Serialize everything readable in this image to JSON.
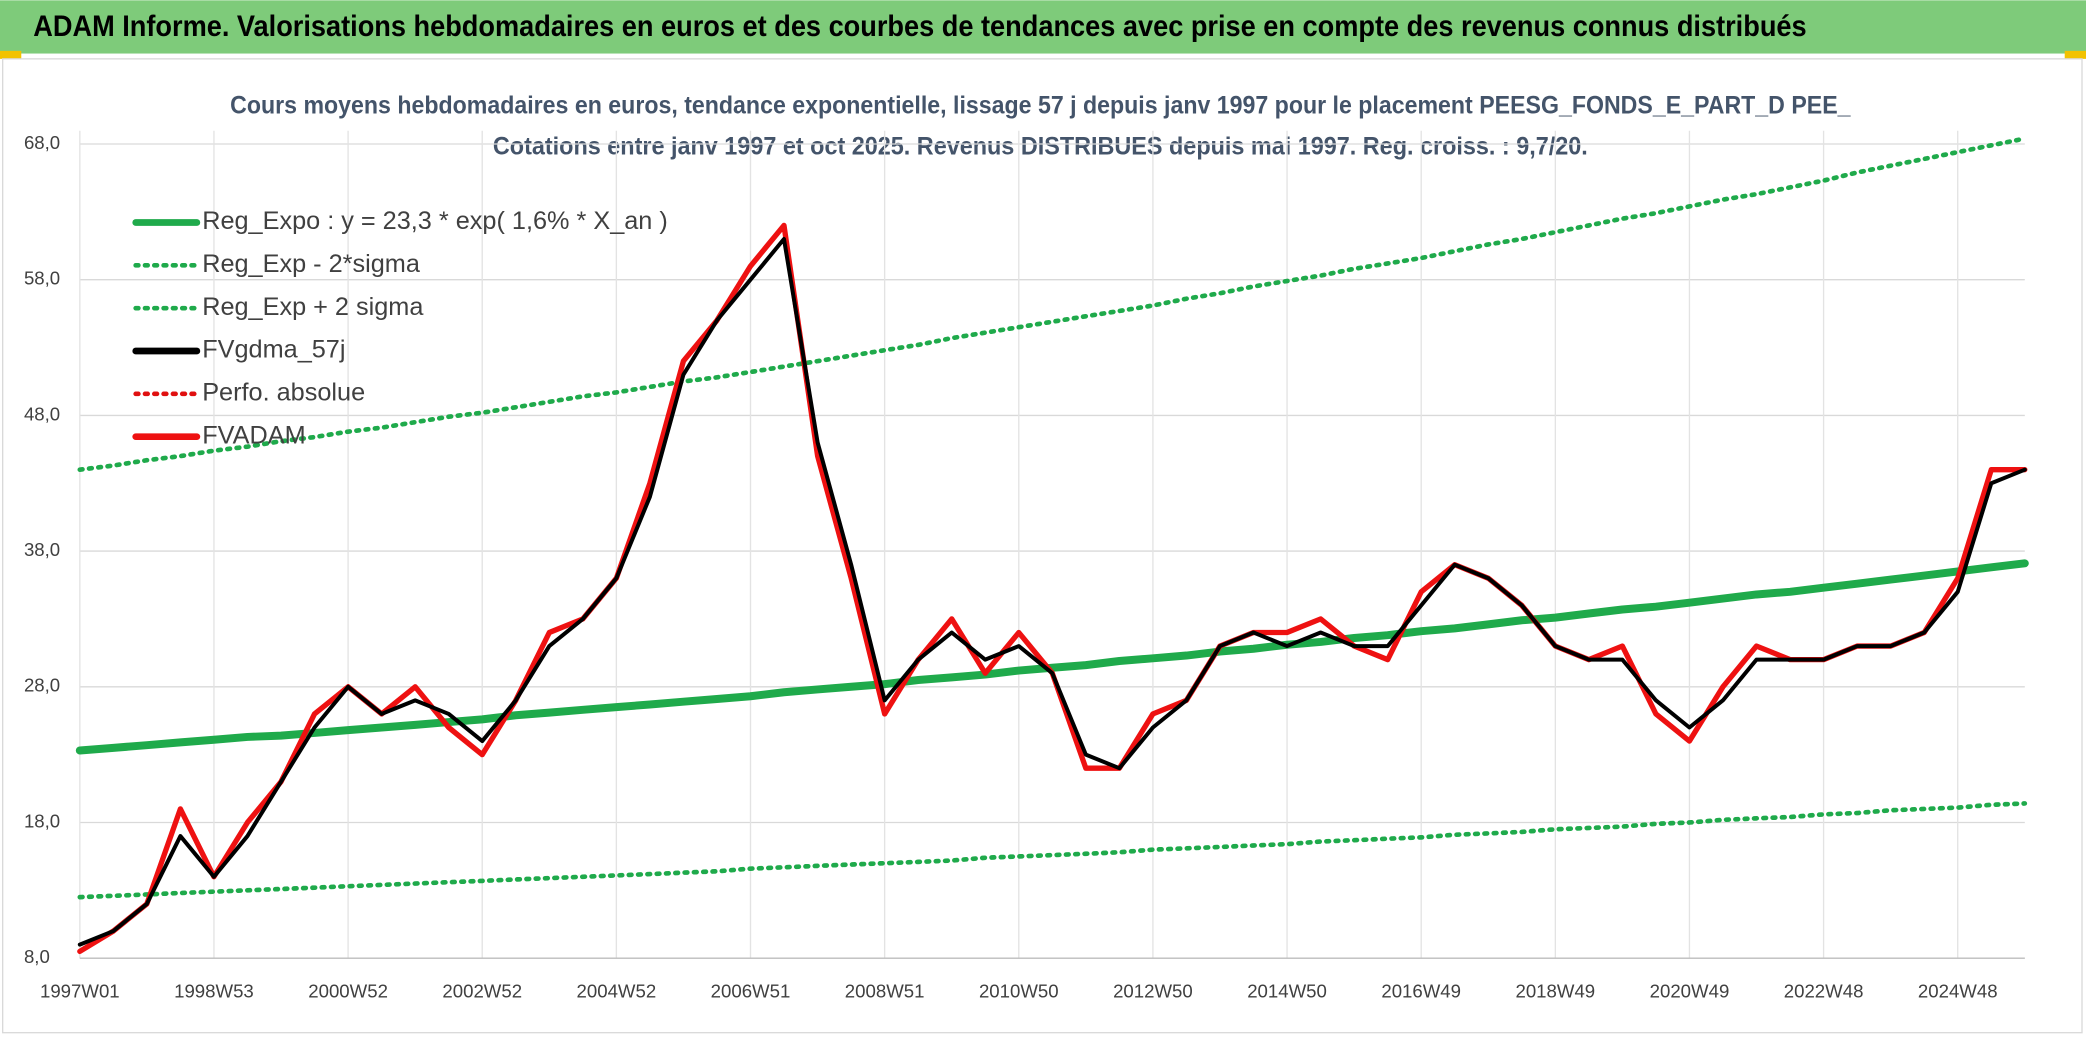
{
  "chart_data": {
    "type": "line",
    "banner": "ADAM Informe. Valorisations hebdomadaires en euros et des courbes de tendances avec prise en compte des revenus connus distribués",
    "title": "Cours moyens hebdomadaires en euros, tendance exponentielle, lissage 57 j depuis janv 1997 pour le placement PEESG_FONDS_E_PART_D PEE_",
    "subtitle": "Cotations entre janv 1997 et oct 2025. Revenus DISTRIBUES depuis mai 1997. Reg. croiss. : 9,7/20.",
    "categories": [
      "1997W01",
      null,
      null,
      null,
      "1998W53",
      null,
      null,
      null,
      "2000W52",
      null,
      null,
      null,
      "2002W52",
      null,
      null,
      null,
      "2004W52",
      null,
      null,
      null,
      "2006W51",
      null,
      null,
      null,
      "2008W51",
      null,
      null,
      null,
      "2010W50",
      null,
      null,
      null,
      "2012W50",
      null,
      null,
      null,
      "2014W50",
      null,
      null,
      null,
      "2016W49",
      null,
      null,
      null,
      "2018W49",
      null,
      null,
      null,
      "2020W49",
      null,
      null,
      null,
      "2022W48",
      null,
      null,
      null,
      "2024W48",
      null,
      null
    ],
    "ylim": [
      8,
      68
    ],
    "yticks": [
      {
        "value": 8,
        "label": "8,0"
      },
      {
        "value": 18,
        "label": "18,0"
      },
      {
        "value": 28,
        "label": "28,0"
      },
      {
        "value": 38,
        "label": "38,0"
      },
      {
        "value": 48,
        "label": "48,0"
      },
      {
        "value": 58,
        "label": "58,0"
      },
      {
        "value": 68,
        "label": "68,0"
      }
    ],
    "grid": true,
    "legend": "upper left",
    "series": [
      {
        "name": "Reg_Expo : y = 23,3 * exp( 1,6% *  X_an )",
        "color": "#1faa4b",
        "style": "solid",
        "values": [
          23.3,
          23.5,
          23.7,
          23.9,
          24.1,
          24.3,
          24.4,
          24.6,
          24.8,
          25.0,
          25.2,
          25.4,
          25.6,
          25.9,
          26.1,
          26.3,
          26.5,
          26.7,
          26.9,
          27.1,
          27.3,
          27.6,
          27.8,
          28.0,
          28.2,
          28.5,
          28.7,
          28.9,
          29.2,
          29.4,
          29.6,
          29.9,
          30.1,
          30.3,
          30.6,
          30.8,
          31.1,
          31.3,
          31.6,
          31.8,
          32.1,
          32.3,
          32.6,
          32.9,
          33.1,
          33.4,
          33.7,
          33.9,
          34.2,
          34.5,
          34.8,
          35.0,
          35.3,
          35.6,
          35.9,
          36.2,
          36.5,
          36.8,
          37.1
        ]
      },
      {
        "name": "Reg_Exp - 2*sigma",
        "color": "#1faa4b",
        "style": "dotted",
        "values": [
          12.5,
          12.6,
          12.7,
          12.8,
          12.9,
          13.0,
          13.1,
          13.2,
          13.3,
          13.4,
          13.5,
          13.6,
          13.7,
          13.8,
          13.9,
          14.0,
          14.1,
          14.2,
          14.3,
          14.4,
          14.6,
          14.7,
          14.8,
          14.9,
          15.0,
          15.1,
          15.2,
          15.4,
          15.5,
          15.6,
          15.7,
          15.8,
          16.0,
          16.1,
          16.2,
          16.3,
          16.4,
          16.6,
          16.7,
          16.8,
          16.9,
          17.1,
          17.2,
          17.3,
          17.5,
          17.6,
          17.7,
          17.9,
          18.0,
          18.2,
          18.3,
          18.4,
          18.6,
          18.7,
          18.9,
          19.0,
          19.1,
          19.3,
          19.4
        ]
      },
      {
        "name": "Reg_Exp + 2 sigma",
        "color": "#1faa4b",
        "style": "dotted",
        "values": [
          44.0,
          44.3,
          44.7,
          45.0,
          45.4,
          45.7,
          46.1,
          46.4,
          46.8,
          47.1,
          47.5,
          47.9,
          48.2,
          48.6,
          49.0,
          49.4,
          49.7,
          50.1,
          50.5,
          50.8,
          51.2,
          51.6,
          52.0,
          52.4,
          52.8,
          53.2,
          53.7,
          54.1,
          54.5,
          54.9,
          55.3,
          55.7,
          56.1,
          56.6,
          57.0,
          57.5,
          57.9,
          58.3,
          58.8,
          59.2,
          59.6,
          60.1,
          60.6,
          61.0,
          61.5,
          62.0,
          62.5,
          62.9,
          63.4,
          63.9,
          64.3,
          64.8,
          65.3,
          65.9,
          66.4,
          66.9,
          67.4,
          67.9,
          68.4
        ]
      },
      {
        "name": "FVgdma_57j",
        "color": "#000000",
        "style": "solid",
        "values": [
          9,
          10,
          12,
          17,
          14,
          17,
          21,
          25,
          28,
          26,
          27,
          26,
          24,
          27,
          31,
          33,
          36,
          42,
          51,
          55,
          58,
          61,
          46,
          37,
          27,
          30,
          32,
          30,
          31,
          29,
          23,
          22,
          25,
          27,
          31,
          32,
          31,
          32,
          31,
          31,
          34,
          37,
          36,
          34,
          31,
          30,
          30,
          27,
          25,
          27,
          30,
          30,
          30,
          31,
          31,
          32,
          35,
          43,
          44
        ]
      },
      {
        "name": "Perfo. absolue",
        "color": "#e01010",
        "style": "dotted",
        "values": [
          null,
          null,
          null,
          null,
          null,
          null,
          null,
          null,
          null,
          null,
          null,
          null,
          null,
          null,
          null,
          null,
          null,
          null,
          null,
          null,
          null,
          null,
          null,
          null,
          null,
          null,
          null,
          null,
          null,
          null,
          null,
          null,
          null,
          null,
          null,
          null,
          null,
          null,
          null,
          null,
          null,
          null,
          null,
          null,
          null,
          null,
          null,
          null,
          null,
          null,
          null,
          null,
          null,
          null,
          null,
          null,
          null,
          null,
          null
        ]
      },
      {
        "name": "FVADAM",
        "color": "#ee1111",
        "style": "solid",
        "values": [
          8.5,
          10,
          12,
          19,
          14,
          18,
          21,
          26,
          28,
          26,
          28,
          25,
          23,
          27,
          32,
          33,
          36,
          43,
          52,
          55,
          59,
          62,
          45,
          36,
          26,
          30,
          33,
          29,
          32,
          29,
          22,
          22,
          26,
          27,
          31,
          32,
          32,
          33,
          31,
          30,
          35,
          37,
          36,
          34,
          31,
          30,
          31,
          26,
          24,
          28,
          31,
          30,
          30,
          31,
          31,
          32,
          36,
          44,
          44
        ]
      }
    ]
  }
}
